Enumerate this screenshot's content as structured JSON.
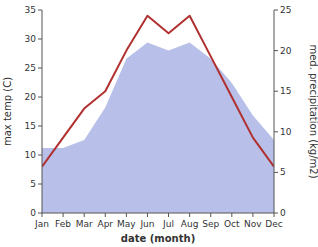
{
  "chart_data": {
    "type": "line",
    "categories": [
      "Jan",
      "Feb",
      "Mar",
      "Apr",
      "May",
      "Jun",
      "Jul",
      "Aug",
      "Sep",
      "Oct",
      "Nov",
      "Dec"
    ],
    "series": [
      {
        "type": "area",
        "color": "#b8bfe8",
        "axis": "y2",
        "values": [
          8,
          8,
          9,
          13,
          19,
          21,
          20,
          21,
          19,
          16,
          12,
          9
        ]
      },
      {
        "type": "line",
        "color": "#b03030",
        "values": [
          8,
          13,
          18,
          21,
          28,
          34,
          31,
          34,
          27,
          20,
          13,
          8
        ]
      }
    ],
    "x_label": "date (month)",
    "y_label": "max temp (C)",
    "y2_label": "med. precipitation (kg/m2)",
    "ylim": [
      0,
      35
    ],
    "yticks": [
      0,
      5,
      10,
      15,
      20,
      25,
      30,
      35
    ],
    "y2lim": [
      0,
      25
    ],
    "y2ticks": [
      0,
      5,
      10,
      15,
      20,
      25
    ],
    "grid": false
  }
}
